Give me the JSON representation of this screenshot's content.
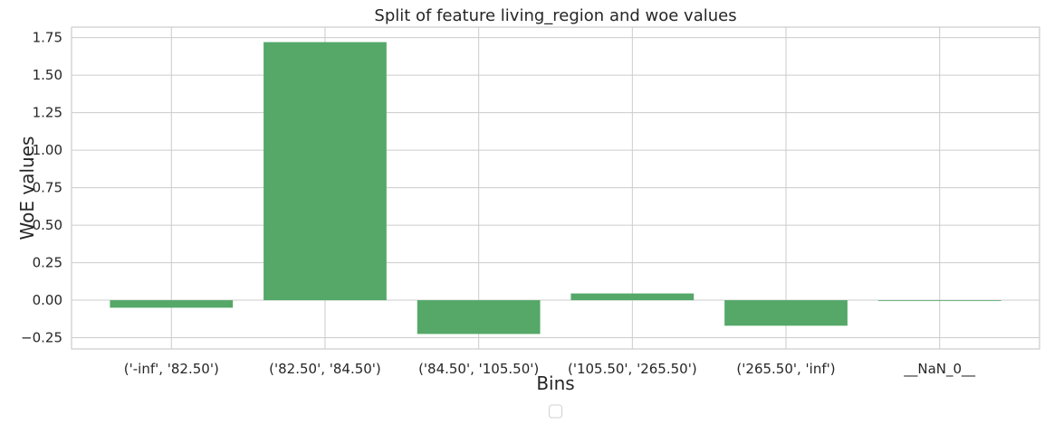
{
  "chart_data": {
    "type": "bar",
    "title": "Split of feature living_region and woe values",
    "xlabel": "Bins",
    "ylabel": "WoE values",
    "categories": [
      "('-inf', '82.50')",
      "('82.50', '84.50')",
      "('84.50', '105.50')",
      "('105.50', '265.50')",
      "('265.50', 'inf')",
      "__NaN_0__"
    ],
    "values": [
      -0.05,
      1.72,
      -0.225,
      0.045,
      -0.17,
      0.0
    ],
    "ylim": [
      -0.325,
      1.82
    ],
    "yticks": [
      -0.25,
      0.0,
      0.25,
      0.5,
      0.75,
      1.0,
      1.25,
      1.5,
      1.75
    ],
    "ytick_labels": [
      "−0.25",
      "0.00",
      "0.25",
      "0.50",
      "0.75",
      "1.00",
      "1.25",
      "1.50",
      "1.75"
    ],
    "grid": true,
    "legend": "bottom-center",
    "bar_color": "#55a868"
  }
}
